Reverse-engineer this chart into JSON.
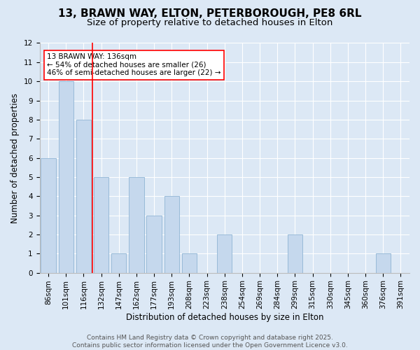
{
  "title_line1": "13, BRAWN WAY, ELTON, PETERBOROUGH, PE8 6RL",
  "title_line2": "Size of property relative to detached houses in Elton",
  "xlabel": "Distribution of detached houses by size in Elton",
  "ylabel": "Number of detached properties",
  "footnote": "Contains HM Land Registry data © Crown copyright and database right 2025.\nContains public sector information licensed under the Open Government Licence v3.0.",
  "categories": [
    "86sqm",
    "101sqm",
    "116sqm",
    "132sqm",
    "147sqm",
    "162sqm",
    "177sqm",
    "193sqm",
    "208sqm",
    "223sqm",
    "238sqm",
    "254sqm",
    "269sqm",
    "284sqm",
    "299sqm",
    "315sqm",
    "330sqm",
    "345sqm",
    "360sqm",
    "376sqm",
    "391sqm"
  ],
  "values": [
    6,
    10,
    8,
    5,
    1,
    5,
    3,
    4,
    1,
    0,
    2,
    0,
    0,
    0,
    2,
    0,
    0,
    0,
    0,
    1,
    0
  ],
  "bar_color": "#c5d8ed",
  "bar_edge_color": "#8fb4d4",
  "red_line_x": 2.5,
  "annotation_text": "13 BRAWN WAY: 136sqm\n← 54% of detached houses are smaller (26)\n46% of semi-detached houses are larger (22) →",
  "annotation_box_color": "white",
  "annotation_box_edge": "red",
  "ylim": [
    0,
    12
  ],
  "yticks": [
    0,
    1,
    2,
    3,
    4,
    5,
    6,
    7,
    8,
    9,
    10,
    11,
    12
  ],
  "background_color": "#dce8f5",
  "axes_background": "#dce8f5",
  "grid_color": "white",
  "title_fontsize": 11,
  "subtitle_fontsize": 9.5,
  "axis_label_fontsize": 8.5,
  "tick_fontsize": 7.5,
  "annotation_fontsize": 7.5,
  "footnote_fontsize": 6.5
}
